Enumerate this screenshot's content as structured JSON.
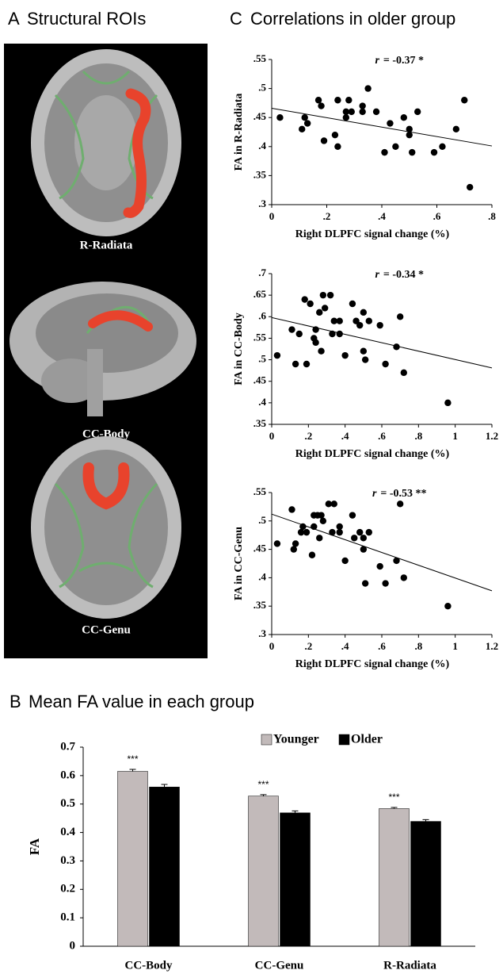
{
  "panels": {
    "A": {
      "letter": "A",
      "title": "Structural ROIs",
      "labels": [
        "R-Radiata",
        "CC-Body",
        "CC-Genu"
      ]
    },
    "C": {
      "letter": "C",
      "title": "Correlations in older group"
    },
    "B": {
      "letter": "B",
      "title": "Mean FA value in each group"
    }
  },
  "chart_data": [
    {
      "type": "scatter",
      "xlabel": "Right DLPFC signal change (%)",
      "ylabel": "FA in R-Radiata",
      "annotation": {
        "symbol": "r",
        "text": "= -0.37 *"
      },
      "color": "#000000",
      "xlim": [
        0,
        0.8
      ],
      "ylim": [
        0.3,
        0.55
      ],
      "xticks": [
        0,
        {
          "value": 0.2,
          "label": ".2"
        },
        {
          "value": 0.4,
          "label": ".4"
        },
        {
          "value": 0.6,
          "label": ".6"
        },
        {
          "value": 0.8,
          "label": ".8"
        }
      ],
      "yticks": [
        {
          "value": 0.3,
          "label": ".3"
        },
        {
          "value": 0.35,
          "label": ".35"
        },
        {
          "value": 0.4,
          "label": ".4"
        },
        {
          "value": 0.45,
          "label": ".45"
        },
        {
          "value": 0.5,
          "label": ".5"
        },
        {
          "value": 0.55,
          "label": ".55"
        }
      ],
      "x": [
        0.03,
        0.11,
        0.12,
        0.13,
        0.17,
        0.18,
        0.19,
        0.23,
        0.24,
        0.24,
        0.27,
        0.27,
        0.28,
        0.29,
        0.33,
        0.33,
        0.35,
        0.38,
        0.41,
        0.43,
        0.45,
        0.48,
        0.5,
        0.5,
        0.51,
        0.53,
        0.59,
        0.62,
        0.67,
        0.7,
        0.72
      ],
      "values": [
        0.45,
        0.43,
        0.45,
        0.44,
        0.48,
        0.47,
        0.41,
        0.42,
        0.4,
        0.48,
        0.46,
        0.45,
        0.48,
        0.46,
        0.47,
        0.46,
        0.5,
        0.46,
        0.39,
        0.44,
        0.4,
        0.45,
        0.43,
        0.42,
        0.39,
        0.46,
        0.39,
        0.4,
        0.43,
        0.48,
        0.33
      ],
      "fit": {
        "x": [
          0,
          0.8
        ],
        "values": [
          0.466,
          0.401
        ]
      }
    },
    {
      "type": "scatter",
      "xlabel": "Right DLPFC signal change (%)",
      "ylabel": "FA in CC-Body",
      "annotation": {
        "symbol": "r",
        "text": "= -0.34 *"
      },
      "color": "#000000",
      "xlim": [
        0,
        1.2
      ],
      "ylim": [
        0.35,
        0.7
      ],
      "xticks": [
        0,
        {
          "value": 0.2,
          "label": ".2"
        },
        {
          "value": 0.4,
          "label": ".4"
        },
        {
          "value": 0.6,
          "label": ".6"
        },
        {
          "value": 0.8,
          "label": ".8"
        },
        1,
        1.2
      ],
      "yticks": [
        {
          "value": 0.35,
          "label": ".35"
        },
        {
          "value": 0.4,
          "label": ".4"
        },
        {
          "value": 0.45,
          "label": ".45"
        },
        {
          "value": 0.5,
          "label": ".5"
        },
        {
          "value": 0.55,
          "label": ".55"
        },
        {
          "value": 0.6,
          "label": ".6"
        },
        {
          "value": 0.65,
          "label": ".65"
        },
        {
          "value": 0.7,
          "label": ".7"
        }
      ],
      "x": [
        0.03,
        0.11,
        0.13,
        0.15,
        0.18,
        0.19,
        0.21,
        0.23,
        0.24,
        0.24,
        0.26,
        0.27,
        0.28,
        0.29,
        0.32,
        0.33,
        0.34,
        0.37,
        0.37,
        0.4,
        0.44,
        0.46,
        0.48,
        0.5,
        0.5,
        0.51,
        0.53,
        0.59,
        0.62,
        0.68,
        0.7,
        0.72,
        0.96
      ],
      "values": [
        0.51,
        0.57,
        0.49,
        0.56,
        0.64,
        0.49,
        0.63,
        0.55,
        0.57,
        0.54,
        0.61,
        0.52,
        0.65,
        0.62,
        0.65,
        0.56,
        0.59,
        0.59,
        0.56,
        0.51,
        0.63,
        0.59,
        0.58,
        0.61,
        0.52,
        0.5,
        0.59,
        0.58,
        0.49,
        0.53,
        0.6,
        0.47,
        0.4
      ],
      "fit": {
        "x": [
          0,
          1.2
        ],
        "values": [
          0.598,
          0.481
        ]
      }
    },
    {
      "type": "scatter",
      "xlabel": "Right DLPFC signal change (%)",
      "ylabel": "FA in CC-Genu",
      "annotation": {
        "symbol": "r",
        "text": "= -0.53 **"
      },
      "color": "#000000",
      "xlim": [
        0,
        1.2
      ],
      "ylim": [
        0.3,
        0.55
      ],
      "xticks": [
        0,
        {
          "value": 0.2,
          "label": ".2"
        },
        {
          "value": 0.4,
          "label": ".4"
        },
        {
          "value": 0.6,
          "label": ".6"
        },
        {
          "value": 0.8,
          "label": ".8"
        },
        1,
        1.2
      ],
      "yticks": [
        {
          "value": 0.3,
          "label": ".3"
        },
        {
          "value": 0.35,
          "label": ".35"
        },
        {
          "value": 0.4,
          "label": ".4"
        },
        {
          "value": 0.45,
          "label": ".45"
        },
        {
          "value": 0.5,
          "label": ".5"
        },
        {
          "value": 0.55,
          "label": ".55"
        }
      ],
      "x": [
        0.03,
        0.11,
        0.12,
        0.13,
        0.16,
        0.17,
        0.19,
        0.22,
        0.23,
        0.23,
        0.25,
        0.26,
        0.27,
        0.28,
        0.31,
        0.33,
        0.34,
        0.37,
        0.37,
        0.4,
        0.44,
        0.45,
        0.48,
        0.5,
        0.5,
        0.51,
        0.53,
        0.59,
        0.62,
        0.68,
        0.7,
        0.72,
        0.96
      ],
      "values": [
        0.46,
        0.52,
        0.45,
        0.46,
        0.48,
        0.49,
        0.48,
        0.44,
        0.49,
        0.51,
        0.51,
        0.47,
        0.51,
        0.5,
        0.53,
        0.48,
        0.53,
        0.49,
        0.48,
        0.43,
        0.51,
        0.47,
        0.48,
        0.45,
        0.47,
        0.39,
        0.48,
        0.42,
        0.39,
        0.43,
        0.53,
        0.4,
        0.35
      ],
      "fit": {
        "x": [
          0,
          1.2
        ],
        "values": [
          0.512,
          0.377
        ]
      }
    },
    {
      "type": "bar",
      "ylabel": "FA",
      "categories": [
        "CC-Body",
        "CC-Genu",
        "R-Radiata"
      ],
      "annotations": [
        "***",
        "***",
        "***"
      ],
      "ylim": [
        0,
        0.7
      ],
      "yticks": [
        0,
        0.1,
        0.2,
        0.3,
        0.4,
        0.5,
        0.6,
        0.7
      ],
      "series": [
        {
          "name": "Younger",
          "color": "#c2baba",
          "values": [
            0.615,
            0.528,
            0.484
          ],
          "errors": [
            0.007,
            0.005,
            0.004
          ]
        },
        {
          "name": "Older",
          "color": "#000000",
          "values": [
            0.56,
            0.469,
            0.439
          ],
          "errors": [
            0.009,
            0.007,
            0.006
          ]
        }
      ]
    }
  ]
}
